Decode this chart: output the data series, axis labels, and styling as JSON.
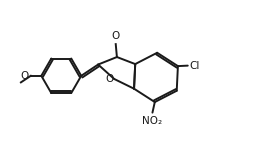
{
  "background": "#ffffff",
  "line_color": "#1a1a1a",
  "line_width": 1.4,
  "figsize": [
    2.54,
    1.61
  ],
  "dpi": 100,
  "xlim": [
    0,
    10.5
  ],
  "ylim": [
    0,
    6.8
  ]
}
